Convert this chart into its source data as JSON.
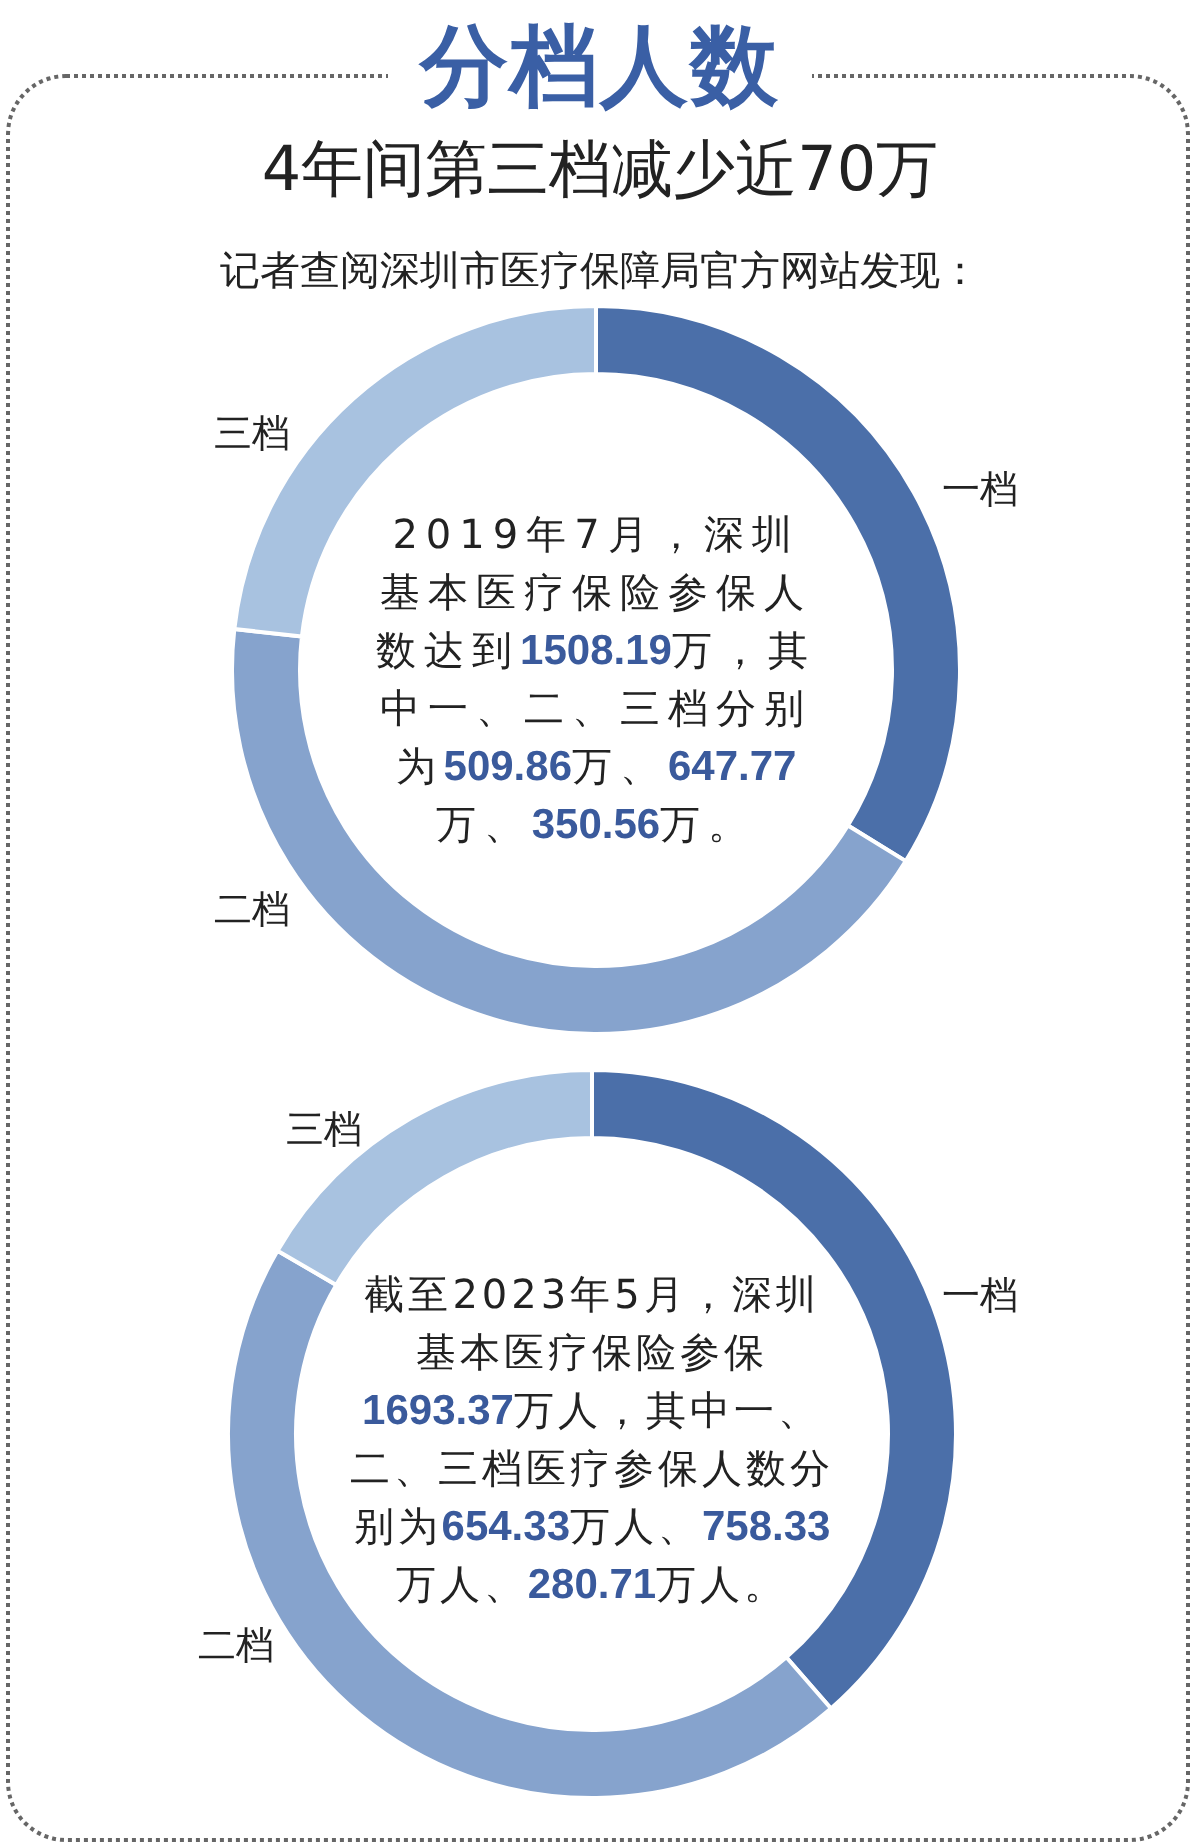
{
  "chart_data": [
    {
      "type": "donut",
      "title": "分档人数",
      "subtitle": "4年间第三档减少近70万",
      "annotations": [
        "记者查阅深圳市医疗保障局官方网站发现：",
        "2019年7月，深圳基本医疗保险参保人数达到1508.19万，其中一、二、三档分别为509.86万、647.77万、350.56万。"
      ],
      "categories": [
        "一档",
        "二档",
        "三档"
      ],
      "values": [
        33.8,
        43.0,
        23.2
      ],
      "colors": [
        "#4b6fa9",
        "#86a3cd",
        "#a8c2e0"
      ]
    },
    {
      "type": "donut",
      "annotations": [
        "截至2023年5月，深圳基本医疗保险参保1693.37万人，其中一、二、三档医疗参保人数分别为654.33万人、758.33万人、280.71万人。"
      ],
      "categories": [
        "一档",
        "二档",
        "三档"
      ],
      "values": [
        38.6,
        44.8,
        16.6
      ],
      "colors": [
        "#4b6fa9",
        "#86a3cd",
        "#a8c2e0"
      ]
    }
  ]
}
